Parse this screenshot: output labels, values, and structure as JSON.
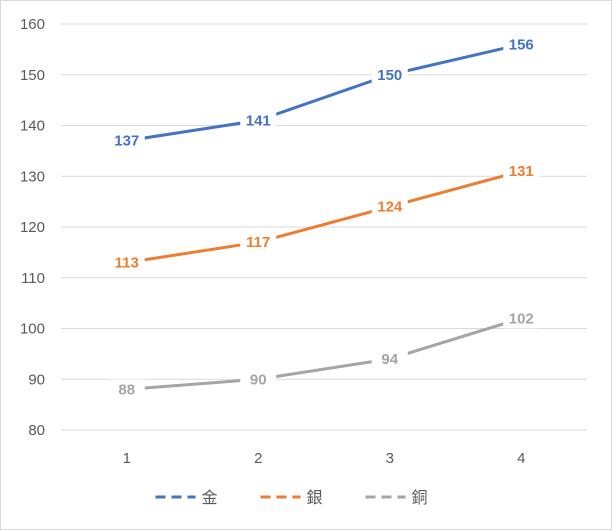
{
  "chart_data": {
    "type": "line",
    "title": "",
    "xlabel": "",
    "ylabel": "",
    "categories": [
      "1",
      "2",
      "3",
      "4"
    ],
    "ylim": [
      80,
      160
    ],
    "yticks": [
      80,
      90,
      100,
      110,
      120,
      130,
      140,
      150,
      160
    ],
    "grid": true,
    "legend_position": "bottom",
    "series": [
      {
        "name": "金",
        "color": "#4472c4",
        "values": [
          137,
          141,
          150,
          156
        ]
      },
      {
        "name": "銀",
        "color": "#ed7d31",
        "values": [
          113,
          117,
          124,
          131
        ]
      },
      {
        "name": "銅",
        "color": "#a5a5a5",
        "values": [
          88,
          90,
          94,
          102
        ]
      }
    ]
  }
}
